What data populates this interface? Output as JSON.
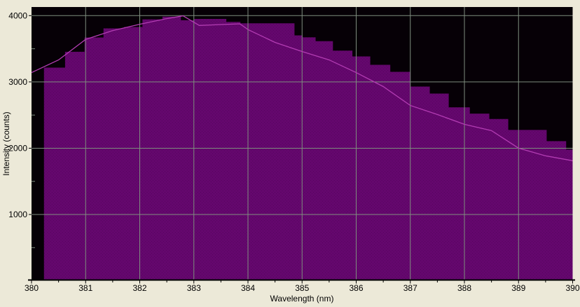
{
  "chart_data": {
    "type": "area",
    "title": "",
    "xlabel": "Wavelength (nm)",
    "ylabel": "Intensity (counts)",
    "xlim": [
      380,
      390
    ],
    "ylim": [
      0,
      4130
    ],
    "grid": "major-on",
    "legend": "none",
    "x_ticks": [
      [
        380,
        "380"
      ],
      [
        381,
        "381"
      ],
      [
        382,
        "382"
      ],
      [
        383,
        "383"
      ],
      [
        384,
        "384"
      ],
      [
        385,
        "385"
      ],
      [
        386,
        "386"
      ],
      [
        387,
        "387"
      ],
      [
        388,
        "388"
      ],
      [
        389,
        "389"
      ],
      [
        390,
        "390"
      ]
    ],
    "x_minor_ticks": [
      380.5,
      381.5,
      382.5,
      383.5,
      384.5,
      385.5,
      386.5,
      387.5,
      388.5,
      389.5
    ],
    "y_ticks": [
      [
        1000,
        "1000"
      ],
      [
        2000,
        "2000"
      ],
      [
        3000,
        "3000"
      ],
      [
        4000,
        "4000"
      ]
    ],
    "y_minor_ticks": [
      500,
      1500,
      2500,
      3500
    ],
    "v_gridlines": [
      381,
      382,
      383,
      384,
      385,
      386,
      387,
      388,
      389
    ],
    "colors": {
      "panel_bg": "#ece9d8",
      "plot_bg": "#060006",
      "fill": "#65076e",
      "fill_dither": "#38043f",
      "line": "#b23cb2",
      "grid": "#7e8d7e",
      "axis": "#000000",
      "text": "#000000"
    },
    "series": [
      {
        "name": "spectrum-steps",
        "style": "step-area",
        "points": [
          [
            380.23,
            380.62,
            3215
          ],
          [
            380.62,
            380.98,
            3455
          ],
          [
            380.98,
            381.33,
            3670
          ],
          [
            381.33,
            381.71,
            3807
          ],
          [
            381.71,
            382.05,
            3828
          ],
          [
            382.05,
            382.42,
            3944
          ],
          [
            382.42,
            382.76,
            3985
          ],
          [
            382.76,
            383.0,
            3930
          ],
          [
            383.0,
            383.6,
            3950
          ],
          [
            383.6,
            383.86,
            3905
          ],
          [
            383.86,
            384.86,
            3884
          ],
          [
            384.86,
            385.01,
            3702
          ],
          [
            385.01,
            385.25,
            3673
          ],
          [
            385.25,
            385.57,
            3614
          ],
          [
            385.57,
            385.93,
            3472
          ],
          [
            385.93,
            386.26,
            3385
          ],
          [
            386.26,
            386.63,
            3258
          ],
          [
            386.63,
            387.0,
            3152
          ],
          [
            387.0,
            387.36,
            2930
          ],
          [
            387.36,
            387.71,
            2824
          ],
          [
            387.71,
            388.1,
            2617
          ],
          [
            388.1,
            388.46,
            2522
          ],
          [
            388.46,
            388.81,
            2441
          ],
          [
            388.81,
            389.52,
            2276
          ],
          [
            389.52,
            389.88,
            2107
          ],
          [
            389.88,
            390.0,
            1980
          ]
        ]
      },
      {
        "name": "spectrum-line",
        "style": "line",
        "points": [
          [
            380.0,
            3141
          ],
          [
            380.5,
            3332
          ],
          [
            381.0,
            3641
          ],
          [
            381.5,
            3775
          ],
          [
            382.0,
            3870
          ],
          [
            382.5,
            3955
          ],
          [
            382.8,
            3997
          ],
          [
            383.1,
            3852
          ],
          [
            383.6,
            3868
          ],
          [
            383.85,
            3876
          ],
          [
            384.0,
            3790
          ],
          [
            384.5,
            3596
          ],
          [
            385.0,
            3459
          ],
          [
            385.5,
            3332
          ],
          [
            386.0,
            3141
          ],
          [
            386.5,
            2930
          ],
          [
            387.0,
            2645
          ],
          [
            387.5,
            2508
          ],
          [
            388.0,
            2360
          ],
          [
            388.5,
            2265
          ],
          [
            389.0,
            2001
          ],
          [
            389.5,
            1885
          ],
          [
            390.0,
            1811
          ]
        ]
      }
    ]
  }
}
